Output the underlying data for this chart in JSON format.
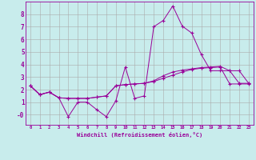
{
  "xlabel": "Windchill (Refroidissement éolien,°C)",
  "bg_color": "#c8ecec",
  "line_color": "#990099",
  "grid_color": "#aaaaaa",
  "spine_color": "#990099",
  "xlim": [
    -0.5,
    23.5
  ],
  "ylim": [
    -0.8,
    9.0
  ],
  "xticks": [
    0,
    1,
    2,
    3,
    4,
    5,
    6,
    7,
    8,
    9,
    10,
    11,
    12,
    13,
    14,
    15,
    16,
    17,
    18,
    19,
    20,
    21,
    22,
    23
  ],
  "yticks": [
    0,
    1,
    2,
    3,
    4,
    5,
    6,
    7,
    8
  ],
  "ytick_labels": [
    "-0",
    "1",
    "2",
    "3",
    "4",
    "5",
    "6",
    "7",
    "8"
  ],
  "line1_x": [
    0,
    1,
    2,
    3,
    4,
    5,
    6,
    7,
    8,
    9,
    10,
    11,
    12,
    13,
    14,
    15,
    16,
    17,
    18,
    19,
    20,
    21,
    22,
    23
  ],
  "line1_y": [
    2.3,
    1.6,
    1.8,
    1.35,
    -0.15,
    1.0,
    1.0,
    0.4,
    -0.15,
    1.1,
    3.8,
    1.3,
    1.5,
    7.0,
    7.5,
    8.65,
    7.05,
    6.5,
    4.8,
    3.5,
    3.5,
    3.5,
    2.5,
    2.5
  ],
  "line2_x": [
    0,
    1,
    2,
    3,
    4,
    5,
    6,
    7,
    8,
    9,
    10,
    11,
    12,
    13,
    14,
    15,
    16,
    17,
    18,
    19,
    20,
    21,
    22,
    23
  ],
  "line2_y": [
    2.3,
    1.6,
    1.8,
    1.35,
    1.3,
    1.3,
    1.3,
    1.4,
    1.5,
    2.3,
    2.4,
    2.45,
    2.5,
    2.7,
    3.1,
    3.4,
    3.55,
    3.65,
    3.75,
    3.8,
    3.85,
    3.5,
    3.5,
    2.5
  ],
  "line3_x": [
    0,
    1,
    2,
    3,
    4,
    5,
    6,
    7,
    8,
    9,
    10,
    11,
    12,
    13,
    14,
    15,
    16,
    17,
    18,
    19,
    20,
    21,
    22,
    23
  ],
  "line3_y": [
    2.3,
    1.6,
    1.8,
    1.35,
    1.3,
    1.3,
    1.3,
    1.4,
    1.5,
    2.3,
    2.4,
    2.45,
    2.5,
    2.65,
    2.9,
    3.15,
    3.4,
    3.6,
    3.7,
    3.75,
    3.8,
    2.45,
    2.45,
    2.45
  ]
}
